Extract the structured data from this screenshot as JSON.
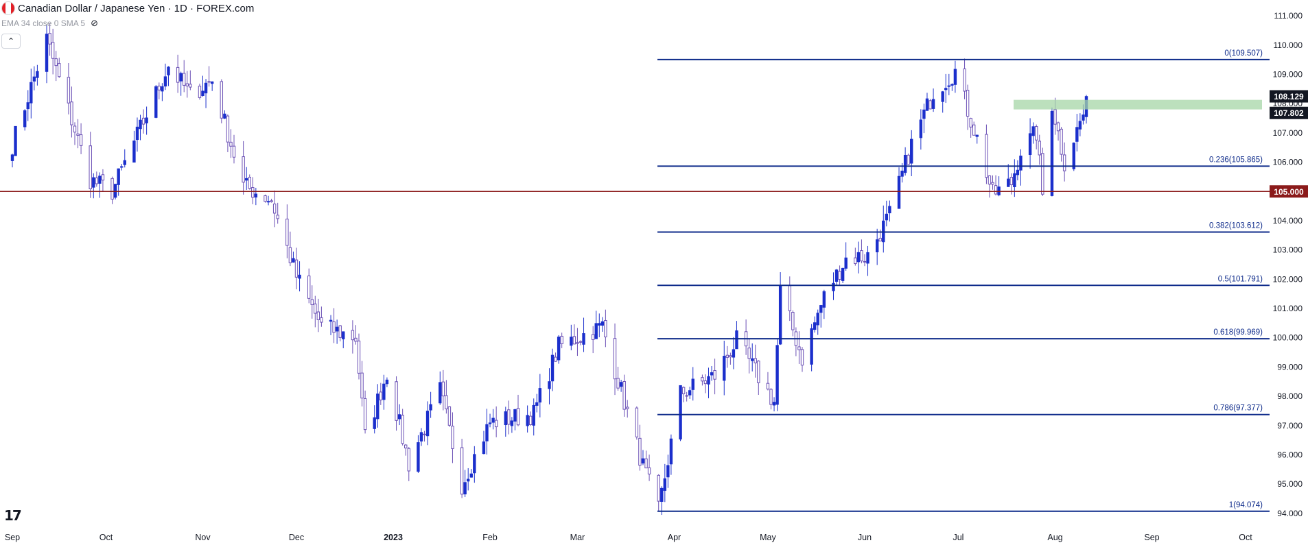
{
  "header": {
    "symbol_title": "Canadian Dollar / Japanese Yen · 1D · FOREX.com",
    "indicator_text": "EMA 34 close 0 SMA 5",
    "logo_text": "17"
  },
  "colors": {
    "fib": "#0d2a8a",
    "bull": "#1b2fcc",
    "bear_outline": "#6a4fb5",
    "support": "#8b1a1a",
    "zone": "#a5d6a7",
    "label_bg": "#131722"
  },
  "chart_data": {
    "type": "candlestick",
    "y_axis_ticks": [
      "111.000",
      "110.000",
      "109.000",
      "108.000",
      "107.000",
      "106.000",
      "105.000",
      "104.000",
      "103.000",
      "102.000",
      "101.000",
      "100.000",
      "99.000",
      "98.000",
      "97.000",
      "96.000",
      "95.000",
      "94.000"
    ],
    "y_range": [
      93.6,
      111.4
    ],
    "x_axis_labels": [
      "Sep",
      "Oct",
      "Nov",
      "Dec",
      "2023",
      "Feb",
      "Mar",
      "Apr",
      "May",
      "Jun",
      "Jul",
      "Aug",
      "Sep",
      "Oct"
    ],
    "fib_levels": [
      {
        "label": "0(109.507)",
        "value": 109.507
      },
      {
        "label": "0.236(105.865)",
        "value": 105.865
      },
      {
        "label": "0.382(103.612)",
        "value": 103.612
      },
      {
        "label": "0.5(101.791)",
        "value": 101.791
      },
      {
        "label": "0.618(99.969)",
        "value": 99.969
      },
      {
        "label": "0.786(97.377)",
        "value": 97.377
      },
      {
        "label": "1(94.074)",
        "value": 94.074
      }
    ],
    "horizontal_line": {
      "label": "105.000",
      "value": 105.0
    },
    "zone": {
      "top": 108.129,
      "bottom": 107.802,
      "top_label": "108.129",
      "bottom_label": "107.802"
    },
    "anchor_points": [
      {
        "date": "2022-09-01",
        "close": 106.6
      },
      {
        "date": "2022-09-12",
        "close": 110.2
      },
      {
        "date": "2022-09-26",
        "close": 105.4
      },
      {
        "date": "2022-10-03",
        "close": 105.0
      },
      {
        "date": "2022-10-21",
        "close": 109.3
      },
      {
        "date": "2022-10-28",
        "close": 108.3
      },
      {
        "date": "2022-11-04",
        "close": 108.8
      },
      {
        "date": "2022-11-14",
        "close": 105.2
      },
      {
        "date": "2022-11-23",
        "close": 104.7
      },
      {
        "date": "2022-12-01",
        "close": 102.1
      },
      {
        "date": "2022-12-09",
        "close": 100.4
      },
      {
        "date": "2022-12-20",
        "close": 100.0
      },
      {
        "date": "2022-12-23",
        "close": 96.6
      },
      {
        "date": "2022-12-30",
        "close": 98.8
      },
      {
        "date": "2023-01-06",
        "close": 95.7
      },
      {
        "date": "2023-01-16",
        "close": 98.2
      },
      {
        "date": "2023-01-23",
        "close": 95.0
      },
      {
        "date": "2023-02-01",
        "close": 97.1
      },
      {
        "date": "2023-02-15",
        "close": 97.4
      },
      {
        "date": "2023-02-23",
        "close": 99.7
      },
      {
        "date": "2023-03-09",
        "close": 100.4
      },
      {
        "date": "2023-03-22",
        "close": 95.6
      },
      {
        "date": "2023-03-27",
        "close": 94.1
      },
      {
        "date": "2023-04-03",
        "close": 98.1
      },
      {
        "date": "2023-04-14",
        "close": 98.7
      },
      {
        "date": "2023-04-21",
        "close": 99.9
      },
      {
        "date": "2023-05-03",
        "close": 97.8
      },
      {
        "date": "2023-05-05",
        "close": 101.6
      },
      {
        "date": "2023-05-12",
        "close": 99.3
      },
      {
        "date": "2023-05-19",
        "close": 101.4
      },
      {
        "date": "2023-05-26",
        "close": 102.7
      },
      {
        "date": "2023-06-02",
        "close": 102.8
      },
      {
        "date": "2023-06-09",
        "close": 104.2
      },
      {
        "date": "2023-06-16",
        "close": 106.6
      },
      {
        "date": "2023-06-23",
        "close": 108.4
      },
      {
        "date": "2023-06-30",
        "close": 109.1
      },
      {
        "date": "2023-07-07",
        "close": 106.8
      },
      {
        "date": "2023-07-12",
        "close": 104.9
      },
      {
        "date": "2023-07-18",
        "close": 105.3
      },
      {
        "date": "2023-07-21",
        "close": 106.4
      },
      {
        "date": "2023-07-26",
        "close": 107.0
      },
      {
        "date": "2023-07-28",
        "close": 104.9
      },
      {
        "date": "2023-07-31",
        "close": 108.0
      },
      {
        "date": "2023-08-04",
        "close": 106.0
      },
      {
        "date": "2023-08-11",
        "close": 107.9
      }
    ]
  }
}
